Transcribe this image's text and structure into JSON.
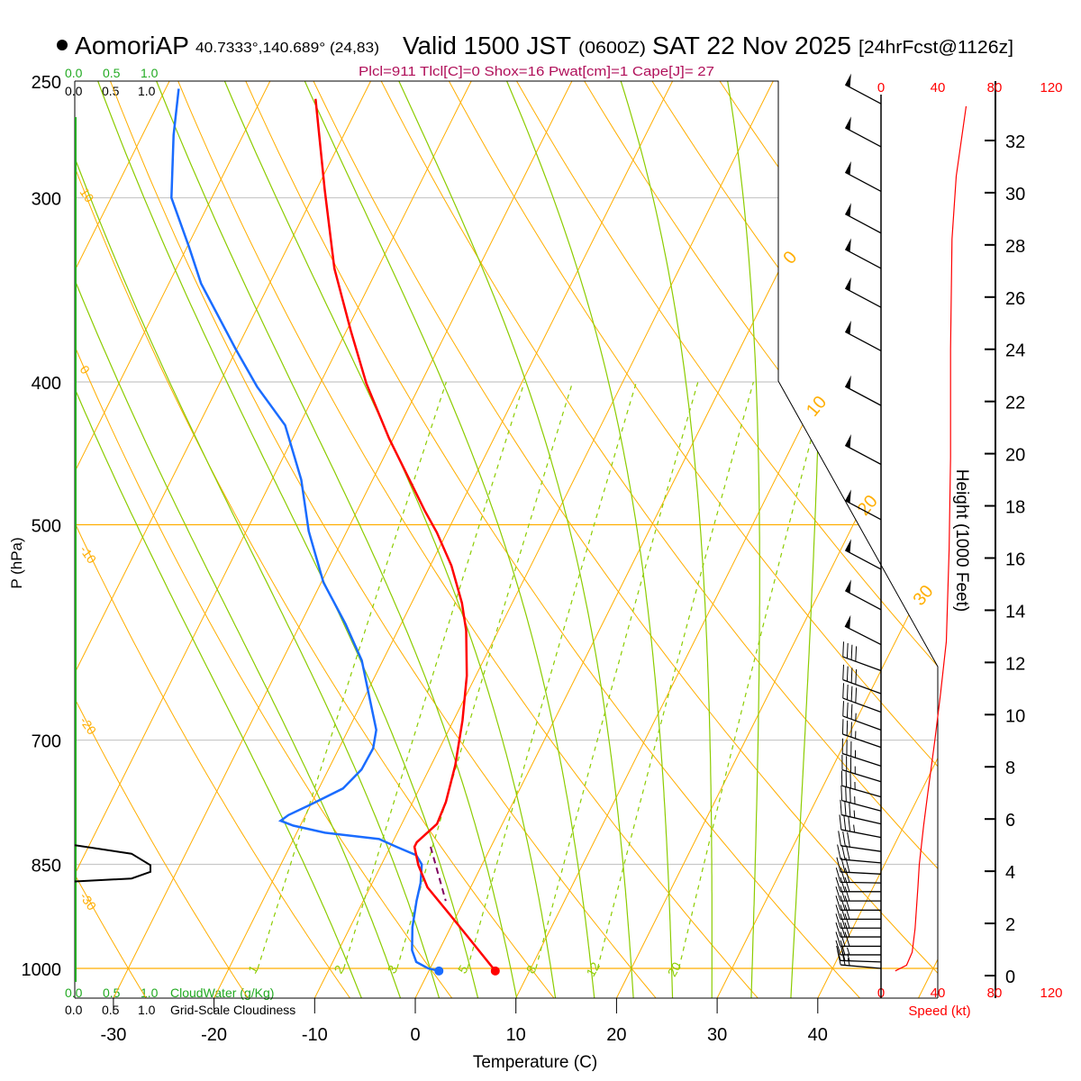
{
  "header": {
    "station": "AomoriAP",
    "coords": "40.7333°,140.689° (24,83)",
    "valid": "Valid 1500 JST",
    "utc": "(0600Z)",
    "date": "SAT 22 Nov 2025",
    "forecast": "[24hrFcst@1126z]"
  },
  "stats": "Plcl=911 Tlcl[C]=0 Shox=16 Pwat[cm]=1 Cape[J]= 27",
  "cloud_scale": {
    "cloudwater_ticks": [
      "0.0",
      "0.5",
      "1.0"
    ],
    "cloudwater_label": "CloudWater (g/Kg)",
    "cloudiness_ticks": [
      "0.0",
      "0.5",
      "1.0"
    ],
    "cloudiness_label": "Grid-Scale Cloudiness"
  },
  "colors": {
    "temperature": "#ff0000",
    "dewpoint": "#1a6cff",
    "parcel": "#800060",
    "isotherm": "#ffae00",
    "moist_adiabat": "#8ccc00",
    "mixing_ratio": "#8ccc00",
    "cloudwater": "#22aa22",
    "stats": "#b0105a",
    "speed": "#ff0000"
  },
  "chart_data": {
    "type": "skew-t",
    "xlabel": "Temperature (C)",
    "ylabel": "P (hPa)",
    "y2label": "Height (1000 Feet)",
    "speed_label": "Speed (kt)",
    "pressure_ticks": [
      "250",
      "300",
      "400",
      "500",
      "700",
      "850",
      "1000"
    ],
    "temperature_ticks": [
      "-30",
      "-20",
      "-10",
      "0",
      "10",
      "20",
      "30",
      "40"
    ],
    "height_ticks": [
      "0",
      "2",
      "4",
      "6",
      "8",
      "10",
      "12",
      "14",
      "16",
      "18",
      "20",
      "22",
      "24",
      "26",
      "28",
      "30",
      "32"
    ],
    "speed_ticks": [
      "0",
      "40",
      "80",
      "120"
    ],
    "isotherm_labels": [
      "0",
      "10",
      "20",
      "30"
    ],
    "dry_adiabat_labels": [
      "10",
      "0",
      "-10",
      "-20",
      "-30"
    ],
    "mixing_ratio_labels": [
      "1",
      "2",
      "3",
      "5",
      "8",
      "12",
      "20"
    ],
    "temperature": [
      [
        1004,
        6.6
      ],
      [
        952,
        2.2
      ],
      [
        913,
        -1.3
      ],
      [
        881,
        -4.3
      ],
      [
        851,
        -6.3
      ],
      [
        827,
        -7.6
      ],
      [
        821,
        -7.6
      ],
      [
        798,
        -6.5
      ],
      [
        771,
        -6.7
      ],
      [
        728,
        -7.6
      ],
      [
        679,
        -9.1
      ],
      [
        633,
        -10.9
      ],
      [
        590,
        -13.2
      ],
      [
        565,
        -15.0
      ],
      [
        533,
        -17.9
      ],
      [
        506,
        -21.0
      ],
      [
        489,
        -23.3
      ],
      [
        437,
        -30.4
      ],
      [
        401,
        -35.4
      ],
      [
        369,
        -39.6
      ],
      [
        335,
        -44.3
      ],
      [
        296,
        -49.2
      ],
      [
        257,
        -54.6
      ]
    ],
    "dewpoint": [
      [
        1004,
        1.0
      ],
      [
        1000,
        -0.2
      ],
      [
        990,
        -1.7
      ],
      [
        972,
        -2.7
      ],
      [
        938,
        -3.8
      ],
      [
        900,
        -4.7
      ],
      [
        875,
        -5.2
      ],
      [
        850,
        -6.0
      ],
      [
        838,
        -7.0
      ],
      [
        827,
        -9.4
      ],
      [
        817,
        -11.5
      ],
      [
        809,
        -17.2
      ],
      [
        800,
        -20.7
      ],
      [
        794,
        -22.2
      ],
      [
        787,
        -21.7
      ],
      [
        774,
        -20.0
      ],
      [
        755,
        -17.6
      ],
      [
        733,
        -16.7
      ],
      [
        709,
        -16.6
      ],
      [
        689,
        -17.2
      ],
      [
        665,
        -18.8
      ],
      [
        618,
        -22.1
      ],
      [
        584,
        -25.5
      ],
      [
        547,
        -29.8
      ],
      [
        505,
        -33.8
      ],
      [
        466,
        -37.1
      ],
      [
        428,
        -41.4
      ],
      [
        403,
        -46.1
      ],
      [
        380,
        -50.1
      ],
      [
        343,
        -56.8
      ],
      [
        324,
        -59.8
      ],
      [
        300,
        -64.0
      ],
      [
        272,
        -66.9
      ],
      [
        253,
        -68.7
      ]
    ],
    "parcel": [
      [
        827,
        -6.0
      ],
      [
        900,
        -1.8
      ]
    ],
    "cloudiness": [
      [
        825,
        0
      ],
      [
        836,
        0.75
      ],
      [
        851,
        1.0
      ],
      [
        860,
        1.0
      ],
      [
        869,
        0.75
      ],
      [
        873,
        0
      ]
    ],
    "wind_speed": [
      [
        1004,
        10
      ],
      [
        995,
        18
      ],
      [
        975,
        22
      ],
      [
        940,
        24
      ],
      [
        880,
        26
      ],
      [
        850,
        27
      ],
      [
        800,
        30
      ],
      [
        760,
        33
      ],
      [
        700,
        38
      ],
      [
        650,
        42
      ],
      [
        600,
        46
      ],
      [
        520,
        48
      ],
      [
        450,
        49
      ],
      [
        380,
        49
      ],
      [
        320,
        50
      ],
      [
        290,
        53
      ],
      [
        260,
        60
      ]
    ],
    "wind_barbs": [
      [
        259,
        298,
        50
      ],
      [
        277,
        298,
        50
      ],
      [
        297,
        298,
        50
      ],
      [
        317,
        298,
        50
      ],
      [
        335,
        298,
        50
      ],
      [
        356,
        298,
        50
      ],
      [
        381,
        298,
        50
      ],
      [
        415,
        298,
        50
      ],
      [
        455,
        298,
        50
      ],
      [
        496,
        298,
        50
      ],
      [
        536,
        298,
        50
      ],
      [
        571,
        298,
        50
      ],
      [
        603,
        297,
        50
      ],
      [
        628,
        290,
        40
      ],
      [
        651,
        290,
        40
      ],
      [
        670,
        290,
        40
      ],
      [
        689,
        290,
        35
      ],
      [
        708,
        289,
        35
      ],
      [
        729,
        288,
        35
      ],
      [
        747,
        287,
        35
      ],
      [
        765,
        286,
        35
      ],
      [
        782,
        285,
        35
      ],
      [
        798,
        283,
        35
      ],
      [
        815,
        281,
        35
      ],
      [
        833,
        278,
        30
      ],
      [
        848,
        275,
        30
      ],
      [
        863,
        273,
        30
      ],
      [
        875,
        271,
        30
      ],
      [
        887,
        270,
        30
      ],
      [
        900,
        270,
        30
      ],
      [
        913,
        270,
        30
      ],
      [
        926,
        270,
        30
      ],
      [
        939,
        270,
        30
      ],
      [
        952,
        270,
        30
      ],
      [
        966,
        270,
        30
      ],
      [
        979,
        270,
        25
      ],
      [
        990,
        272,
        25
      ],
      [
        1000,
        275,
        25
      ]
    ]
  }
}
